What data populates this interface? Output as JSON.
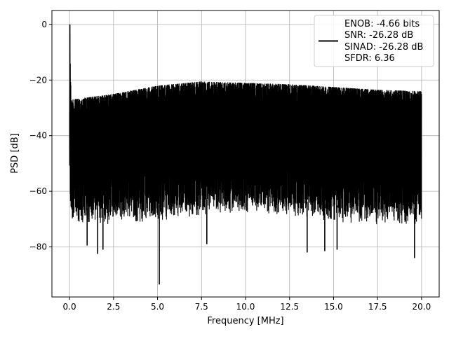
{
  "chart_data": {
    "type": "line",
    "title": "",
    "xlabel": "Frequency [MHz]",
    "ylabel": "PSD [dB]",
    "xlim": [
      -1,
      21
    ],
    "ylim": [
      -98,
      5
    ],
    "xticks": [
      0.0,
      2.5,
      5.0,
      7.5,
      10.0,
      12.5,
      15.0,
      17.5,
      20.0
    ],
    "xtick_labels": [
      "0.0",
      "2.5",
      "5.0",
      "7.5",
      "10.0",
      "12.5",
      "15.0",
      "17.5",
      "20.0"
    ],
    "yticks": [
      0,
      -20,
      -40,
      -60,
      -80
    ],
    "ytick_labels": [
      "0",
      "−20",
      "−40",
      "−60",
      "−80"
    ],
    "grid": true,
    "legend_position": "top-right",
    "legend": {
      "line_color": "#000000",
      "lines": [
        "ENOB: -4.66 bits",
        "SNR: -26.28 dB",
        "SINAD: -26.28 dB",
        "SFDR: 6.36"
      ]
    },
    "series": [
      {
        "color": "#000000",
        "x": [
          0.0,
          0.02,
          0.05,
          0.1,
          2.5,
          5.0,
          7.5,
          10.0,
          12.5,
          15.0,
          17.5,
          20.0
        ],
        "upper_envelope": [
          -28,
          0,
          -15,
          -27,
          -25,
          -22,
          -20.5,
          -21,
          -21.5,
          -22.5,
          -23.5,
          -24
        ],
        "lower_envelope": [
          -48,
          -55,
          -60,
          -66,
          -66,
          -65,
          -63,
          -62,
          -63,
          -65,
          -66,
          -66
        ],
        "spikes": [
          {
            "x": 0.02,
            "y": 0
          },
          {
            "x": 1.6,
            "y": -82.5
          },
          {
            "x": 1.9,
            "y": -81
          },
          {
            "x": 1.0,
            "y": -79.5
          },
          {
            "x": 5.1,
            "y": -93.5
          },
          {
            "x": 7.8,
            "y": -79
          },
          {
            "x": 13.5,
            "y": -82
          },
          {
            "x": 14.5,
            "y": -81.5
          },
          {
            "x": 15.2,
            "y": -81
          },
          {
            "x": 19.6,
            "y": -84
          }
        ]
      }
    ]
  }
}
